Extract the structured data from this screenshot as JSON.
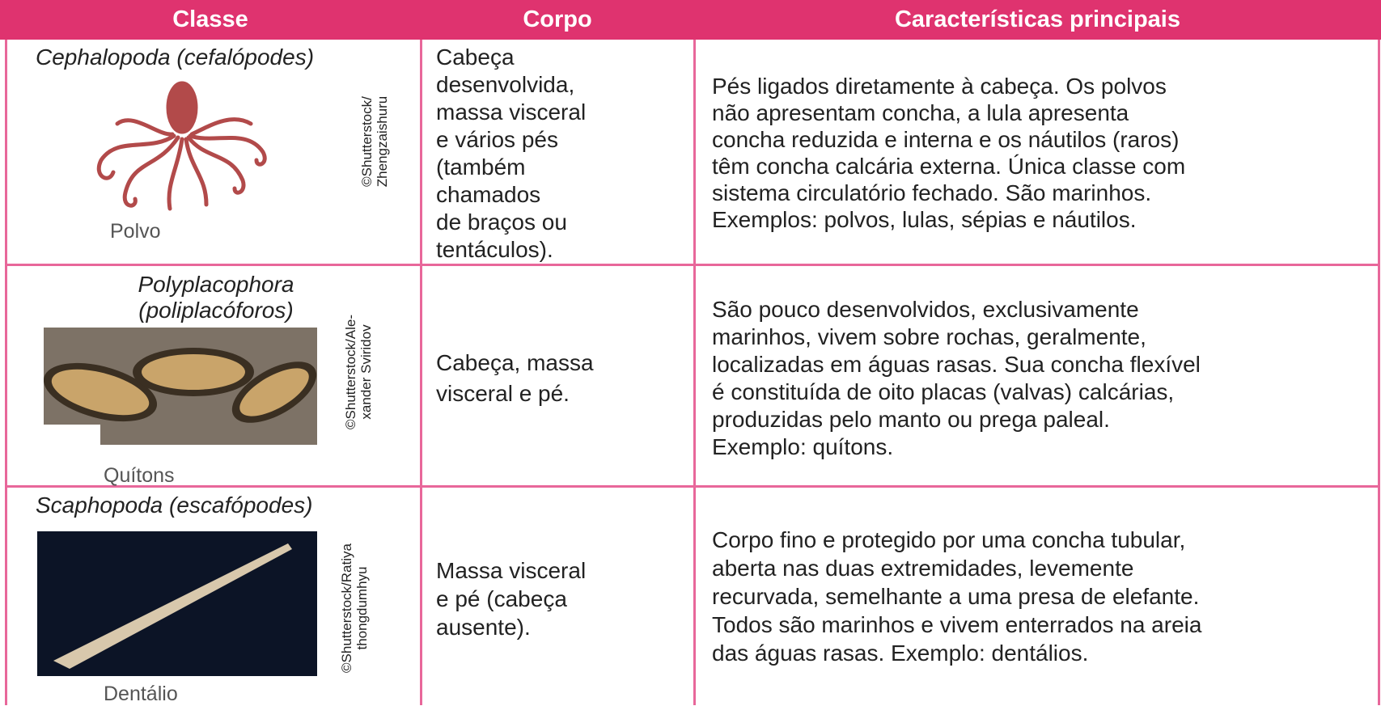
{
  "header": {
    "columns": [
      "Classe",
      "Corpo",
      "Características principais"
    ]
  },
  "table": {
    "rows": [
      {
        "classe": [
          "Cephalopoda (cefalópodes)"
        ],
        "caption": "Polvo",
        "credit": [
          "©Shutterstock/",
          "Zhengzaishuru"
        ],
        "corpo": [
          "Cabeça",
          "desenvolvida,",
          "massa visceral",
          "e vários pés",
          "(também",
          "chamados",
          "de braços ou",
          "tentáculos)."
        ],
        "caracteristicas": [
          "Pés ligados diretamente à cabeça. Os polvos",
          "não apresentam concha, a lula apresenta",
          "concha reduzida e interna e os náutilos (raros)",
          "têm concha calcária externa. Única classe com",
          "sistema circulatório fechado. São marinhos.",
          "Exemplos: polvos, lulas, sépias e náutilos."
        ]
      },
      {
        "classe": [
          "Polyplacophora",
          "(poliplacóforos)"
        ],
        "caption": "Quítons",
        "credit": [
          "©Shutterstock/Ale-",
          "xander Sviridov"
        ],
        "corpo": [
          "Cabeça, massa",
          "visceral e pé."
        ],
        "caracteristicas": [
          "São pouco desenvolvidos, exclusivamente",
          "marinhos, vivem sobre rochas, geralmente,",
          "localizadas em águas rasas. Sua concha flexível",
          "é constituída de oito placas (valvas) calcárias,",
          "produzidas pelo manto ou prega paleal.",
          "Exemplo: quítons."
        ]
      },
      {
        "classe": [
          "Scaphopoda (escafópodes)"
        ],
        "caption": "Dentálio",
        "credit": [
          "©Shutterstock/Ratiya",
          "thongdumhyu"
        ],
        "corpo": [
          "Massa visceral",
          "e pé (cabeça",
          "ausente)."
        ],
        "caracteristicas": [
          "Corpo fino e protegido por uma concha tubular,",
          "aberta nas duas extremidades, levemente",
          "recurvada, semelhante a uma presa de elefante.",
          "Todos são marinhos e vivem enterrados na areia",
          "das águas rasas. Exemplo: dentálios."
        ]
      }
    ]
  }
}
